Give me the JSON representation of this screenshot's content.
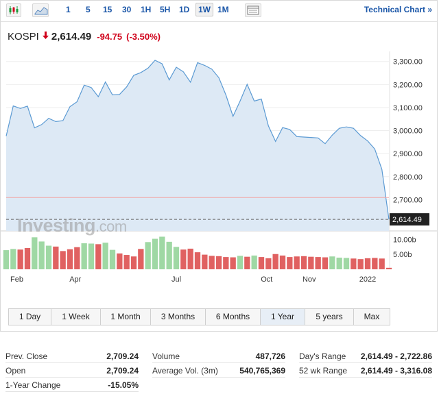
{
  "toolbar": {
    "icons": [
      "candlestick-icon",
      "area-chart-icon",
      "indicator-panel-icon"
    ],
    "timeframes": [
      "1",
      "5",
      "15",
      "30",
      "1H",
      "5H",
      "1D",
      "1W",
      "1M"
    ],
    "active_timeframe": "1W",
    "technical_chart_label": "Technical Chart",
    "technical_chart_arrow": "»"
  },
  "quote": {
    "symbol": "KOSPI",
    "direction_icon": "down-arrow-icon",
    "price": "2,614.49",
    "change": "-94.75",
    "change_pct": "(-3.50%)"
  },
  "watermark": {
    "main": "Investing",
    "suffix": ".com"
  },
  "ranges": [
    "1 Day",
    "1 Week",
    "1 Month",
    "3 Months",
    "6 Months",
    "1 Year",
    "5 years",
    "Max"
  ],
  "active_range": "1 Year",
  "colors": {
    "line": "#5b9ad3",
    "area": "#dde9f5",
    "up_volume": "#9fd8a4",
    "down_volume": "#e06161",
    "prev_close_line": "#f1a7a7",
    "accent": "#1a56a8",
    "negative": "#d0021b"
  },
  "chart_data": {
    "type": "area",
    "price_axis": {
      "ticks": [
        "3,300.00",
        "3,200.00",
        "3,100.00",
        "3,000.00",
        "2,900.00",
        "2,800.00",
        "2,700.00"
      ],
      "ylim": [
        2600,
        3320
      ],
      "last_value_label": "2,614.49"
    },
    "volume_axis": {
      "ticks": [
        "10.00b",
        "5.00b"
      ]
    },
    "x_ticks": [
      "Feb",
      "Apr",
      "Jul",
      "Oct",
      "Nov",
      "2022"
    ],
    "x_tick_weeks": [
      2,
      13,
      32,
      49,
      57,
      68
    ],
    "prev_close": 2709.24,
    "series": [
      {
        "values": [
          2976,
          3107,
          3096,
          3106,
          3012,
          3026,
          3053,
          3039,
          3043,
          3104,
          3125,
          3197,
          3187,
          3147,
          3211,
          3155,
          3157,
          3190,
          3240,
          3252,
          3271,
          3305,
          3290,
          3220,
          3275,
          3255,
          3210,
          3295,
          3283,
          3267,
          3230,
          3155,
          3062,
          3128,
          3201,
          3128,
          3137,
          3020,
          2953,
          3013,
          3005,
          2974,
          2972,
          2970,
          2968,
          2943,
          2980,
          3010,
          3016,
          3010,
          2978,
          2955,
          2920,
          2832,
          2614.49
        ]
      }
    ],
    "volume": {
      "values": [
        6.4,
        6.8,
        6.6,
        7.1,
        10.7,
        9.3,
        7.9,
        7.6,
        6.1,
        6.7,
        7.4,
        8.7,
        8.6,
        8.4,
        8.9,
        6.5,
        5.3,
        4.8,
        4.3,
        6.8,
        9.1,
        10.2,
        10.9,
        9.2,
        7.5,
        6.6,
        6.9,
        5.7,
        4.9,
        4.5,
        4.4,
        4.1,
        4.0,
        4.5,
        4.2,
        4.6,
        4.1,
        3.7,
        5.1,
        4.6,
        4.1,
        4.3,
        4.4,
        4.2,
        4.1,
        4.0,
        4.3,
        3.9,
        3.8,
        3.6,
        3.4,
        3.7,
        3.8,
        3.6,
        0.5
      ],
      "up": [
        1,
        1,
        0,
        0,
        1,
        1,
        1,
        0,
        0,
        0,
        0,
        1,
        1,
        0,
        1,
        1,
        0,
        0,
        0,
        0,
        1,
        1,
        1,
        1,
        1,
        0,
        0,
        0,
        0,
        0,
        0,
        0,
        0,
        1,
        0,
        1,
        0,
        0,
        0,
        0,
        0,
        0,
        0,
        0,
        0,
        0,
        1,
        1,
        1,
        0,
        0,
        0,
        0,
        0,
        0
      ]
    }
  },
  "stats": [
    [
      {
        "label": "Prev. Close",
        "value": "2,709.24"
      },
      {
        "label": "Volume",
        "value": "487,726"
      },
      {
        "label": "Day's Range",
        "value": "2,614.49 - 2,722.86"
      }
    ],
    [
      {
        "label": "Open",
        "value": "2,709.24"
      },
      {
        "label": "Average Vol. (3m)",
        "value": "540,765,369"
      },
      {
        "label": "52 wk Range",
        "value": "2,614.49 - 3,316.08"
      }
    ],
    [
      {
        "label": "1-Year Change",
        "value": "-15.05%"
      }
    ]
  ]
}
